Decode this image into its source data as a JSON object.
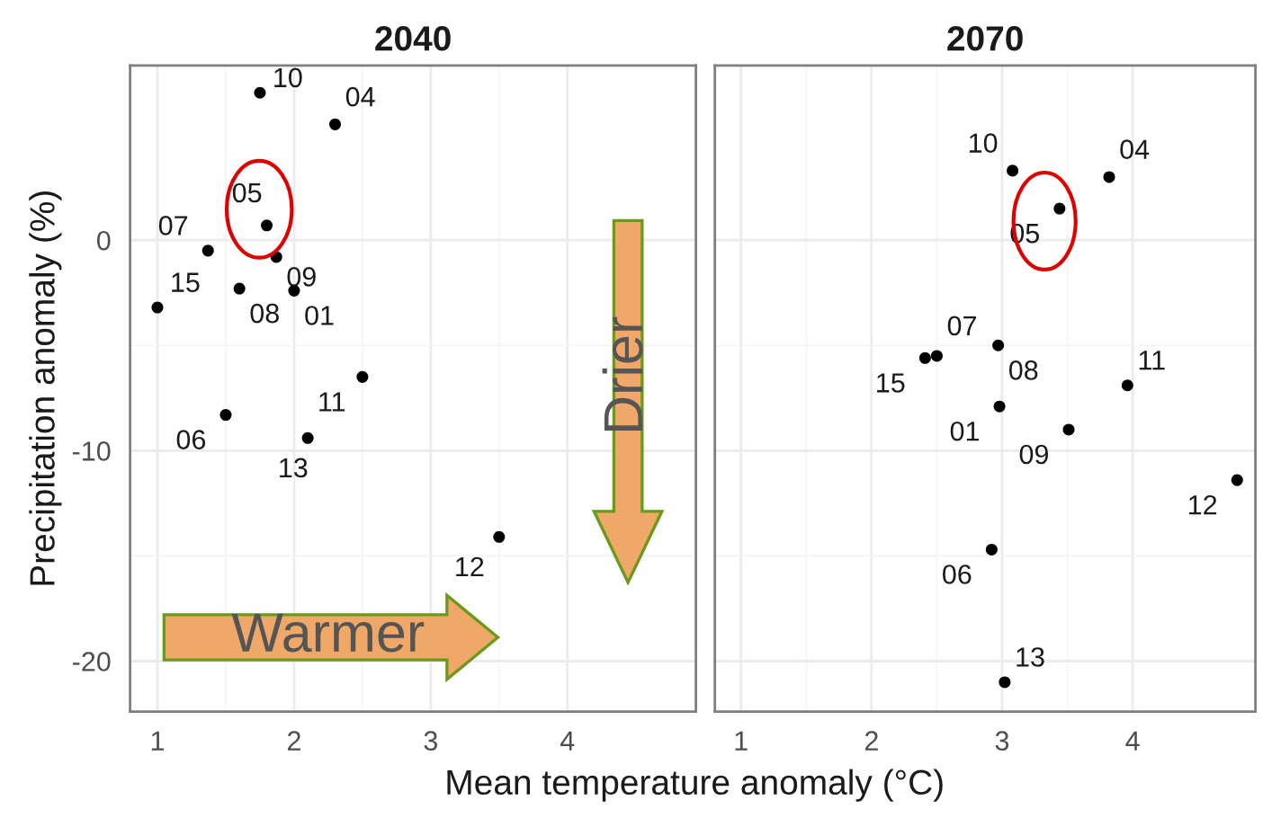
{
  "chart_data": [
    {
      "type": "scatter",
      "title": "2040",
      "xlabel": "Mean temperature anomaly (°C)",
      "ylabel": "Precipitation anomaly (%)",
      "xlim": [
        0.8,
        4.94
      ],
      "ylim": [
        -22.4,
        8.3
      ],
      "xticks": [
        1,
        2,
        3,
        4
      ],
      "yticks": [
        -20,
        -10,
        0
      ],
      "grid": true,
      "marker": "circle",
      "series": [
        {
          "color": "#000000",
          "x": [
            1.8,
            1.75,
            2.3,
            1.87,
            1.37,
            1.0,
            1.6,
            2.0,
            2.5,
            1.5,
            2.1,
            3.5
          ],
          "values": [
            0.7,
            7.0,
            5.5,
            -0.8,
            -0.5,
            -3.2,
            -2.3,
            -2.4,
            -6.5,
            -8.3,
            -9.4,
            -14.1
          ]
        }
      ],
      "annotations": [
        {
          "text": "05",
          "x": 1.8,
          "y": 0.7
        },
        {
          "text": "10",
          "x": 1.75,
          "y": 7.0
        },
        {
          "text": "04",
          "x": 2.3,
          "y": 5.5
        },
        {
          "text": "09",
          "x": 1.87,
          "y": -0.8
        },
        {
          "text": "07",
          "x": 1.37,
          "y": -0.5
        },
        {
          "text": "15",
          "x": 1.0,
          "y": -3.2
        },
        {
          "text": "08",
          "x": 1.6,
          "y": -2.3
        },
        {
          "text": "01",
          "x": 2.0,
          "y": -2.4
        },
        {
          "text": "11",
          "x": 2.5,
          "y": -6.5
        },
        {
          "text": "06",
          "x": 1.5,
          "y": -8.3
        },
        {
          "text": "13",
          "x": 2.1,
          "y": -9.4
        },
        {
          "text": "12",
          "x": 3.5,
          "y": -14.1
        },
        "Warmer",
        "Drier"
      ]
    },
    {
      "type": "scatter",
      "title": "2070",
      "xlim": [
        0.8,
        4.94
      ],
      "ylim": [
        -22.4,
        8.3
      ],
      "xticks": [
        1,
        2,
        3,
        4
      ],
      "yticks": [
        -20,
        -10,
        0
      ],
      "grid": true,
      "marker": "circle",
      "tick_labels": "x",
      "series": [
        {
          "color": "#000000",
          "x": [
            3.44,
            3.08,
            3.82,
            2.5,
            2.41,
            2.97,
            2.98,
            3.96,
            3.51,
            4.8,
            2.92,
            3.02
          ],
          "values": [
            1.5,
            3.3,
            3.0,
            -5.5,
            -5.6,
            -5.0,
            -7.9,
            -6.9,
            -9.0,
            -11.4,
            -14.7,
            -21.0
          ]
        }
      ],
      "annotations": [
        {
          "text": "05",
          "x": 3.44,
          "y": 1.5
        },
        {
          "text": "10",
          "x": 3.08,
          "y": 3.3
        },
        {
          "text": "04",
          "x": 3.82,
          "y": 3.0
        },
        {
          "text": "07",
          "x": 2.5,
          "y": -5.5
        },
        {
          "text": "15",
          "x": 2.41,
          "y": -5.6
        },
        {
          "text": "08",
          "x": 2.97,
          "y": -5.0
        },
        {
          "text": "01",
          "x": 2.98,
          "y": -7.9
        },
        {
          "text": "11",
          "x": 3.96,
          "y": -6.9
        },
        {
          "text": "09",
          "x": 3.51,
          "y": -9.0
        },
        {
          "text": "12",
          "x": 4.8,
          "y": -11.4
        },
        {
          "text": "06",
          "x": 2.92,
          "y": -14.7
        },
        {
          "text": "13",
          "x": 3.02,
          "y": -21.0
        }
      ]
    }
  ]
}
